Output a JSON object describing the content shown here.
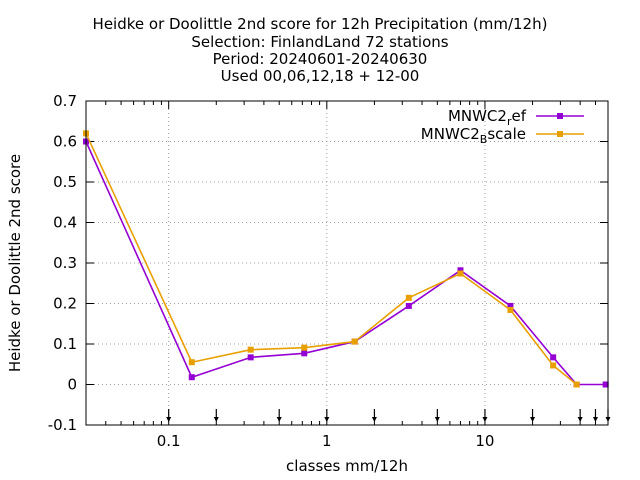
{
  "title": {
    "line1": "Heidke or Doolittle 2nd score  for 12h Precipitation (mm/12h)",
    "line2": "Selection: FinlandLand     72 stations",
    "line3": "Period: 20240601-20240630",
    "line4": "Used 00,06,12,18 + 12-00"
  },
  "chart_data": {
    "type": "line",
    "xlabel": "classes mm/12h",
    "ylabel": "Heidke or Doolittle 2nd score",
    "xscale": "log",
    "xlim": [
      0.03,
      60
    ],
    "ylim": [
      -0.1,
      0.7
    ],
    "y_ticks": [
      "-0.1",
      "0",
      "0.1",
      "0.2",
      "0.3",
      "0.4",
      "0.5",
      "0.6",
      "0.7"
    ],
    "x_ticks": [
      "0.1",
      "1",
      "10"
    ],
    "grid": true,
    "legend_position": "top-right",
    "class_limit_arrows": [
      0.1,
      0.2,
      0.5,
      1,
      2,
      5,
      10,
      20,
      40,
      50,
      60
    ],
    "series": [
      {
        "name_main": "MNWC2",
        "name_sub": "r",
        "name_tail": "ef",
        "color": "#9400d3",
        "points": [
          [
            0.03,
            0.6
          ],
          [
            0.14,
            0.018
          ],
          [
            0.33,
            0.067
          ],
          [
            0.72,
            0.077
          ],
          [
            1.5,
            0.106
          ],
          [
            3.3,
            0.194
          ],
          [
            7.0,
            0.282
          ],
          [
            14.5,
            0.194
          ],
          [
            27,
            0.067
          ],
          [
            38,
            0.0
          ],
          [
            58,
            0.0
          ]
        ]
      },
      {
        "name_main": "MNWC2",
        "name_sub": "B",
        "name_tail": "scale",
        "color": "#e8a000",
        "points": [
          [
            0.03,
            0.62
          ],
          [
            0.14,
            0.055
          ],
          [
            0.33,
            0.086
          ],
          [
            0.72,
            0.091
          ],
          [
            1.5,
            0.106
          ],
          [
            3.3,
            0.214
          ],
          [
            7.0,
            0.274
          ],
          [
            14.5,
            0.184
          ],
          [
            27,
            0.047
          ],
          [
            38,
            0.0
          ]
        ]
      }
    ]
  }
}
